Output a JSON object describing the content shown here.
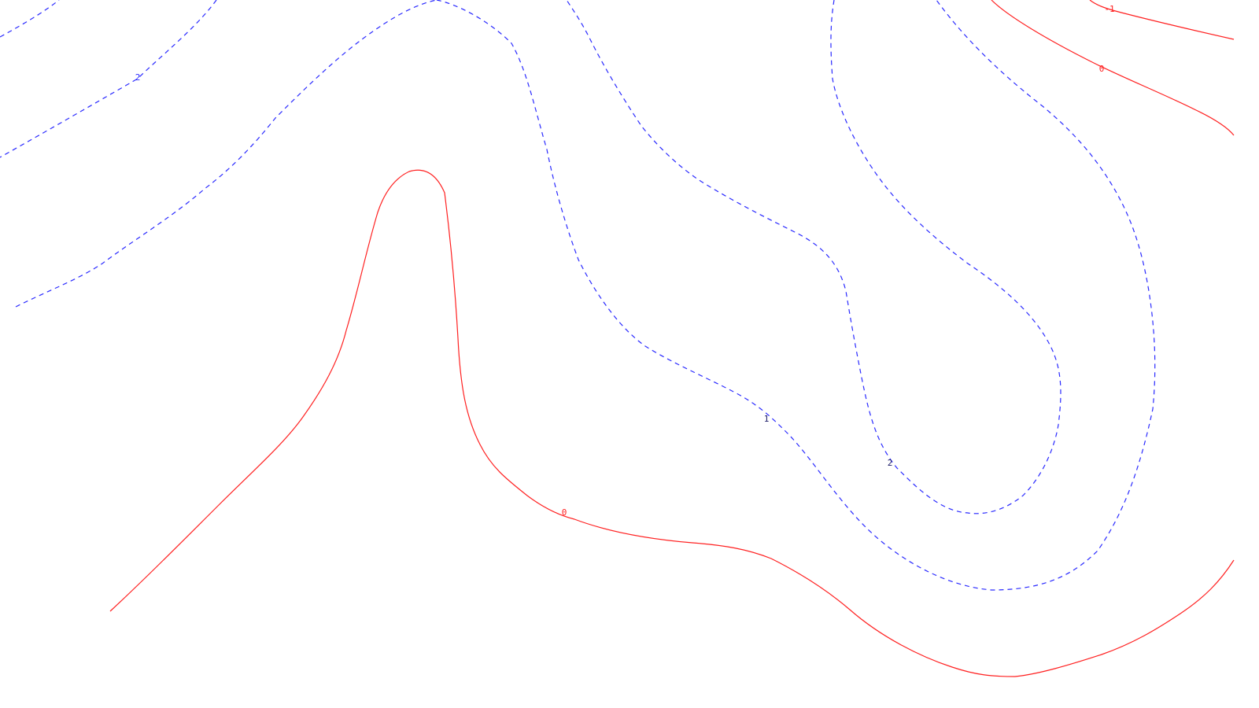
{
  "colors": {
    "background": "#ffffff",
    "negative_or_zero_contour": "#ff2020",
    "positive_contour": "#2a2aff"
  },
  "contour_labels": {
    "zero_top_right": "0",
    "minus_one_top_right": "-1",
    "zero_bottom": "0",
    "two_top_left": "2",
    "one_center": "1",
    "two_center": "2"
  }
}
